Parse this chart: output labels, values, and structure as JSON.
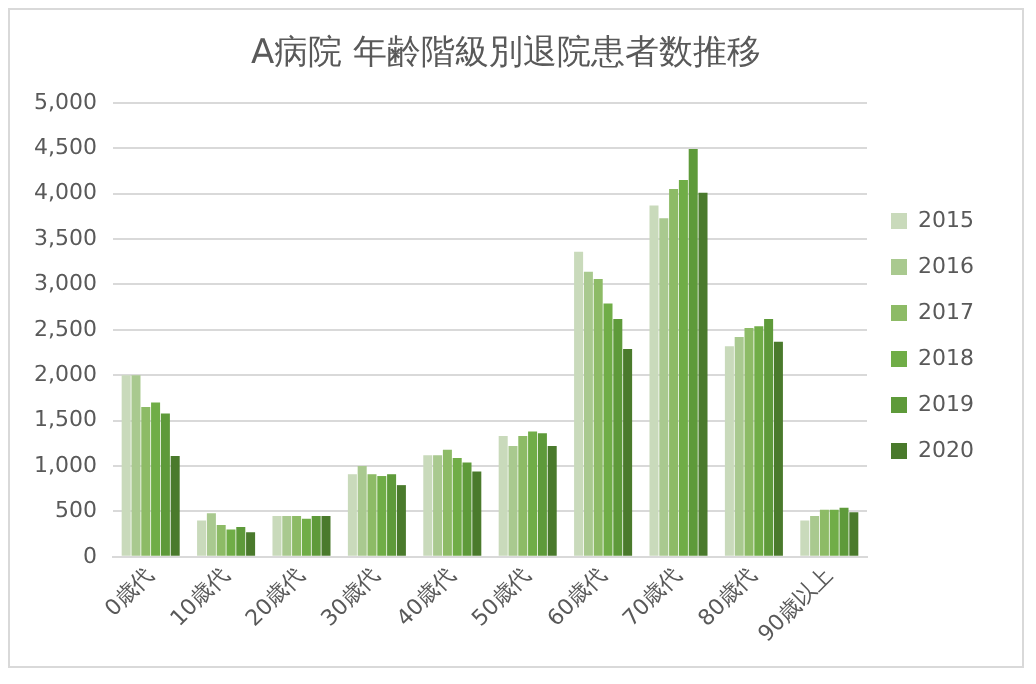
{
  "chart_data": {
    "type": "bar",
    "title": "A病院 年齢階級別退院患者数推移",
    "categories": [
      "0歳代",
      "10歳代",
      "20歳代",
      "30歳代",
      "40歳代",
      "50歳代",
      "60歳代",
      "70歳代",
      "80歳代",
      "90歳以上"
    ],
    "series": [
      {
        "name": "2015",
        "color": "#c9dabb",
        "values": [
          2000,
          400,
          450,
          910,
          1120,
          1330,
          3360,
          3870,
          2320,
          400
        ]
      },
      {
        "name": "2016",
        "color": "#a9c98f",
        "values": [
          2000,
          480,
          450,
          1000,
          1120,
          1220,
          3140,
          3730,
          2420,
          450
        ]
      },
      {
        "name": "2017",
        "color": "#8dbb66",
        "values": [
          1650,
          350,
          450,
          910,
          1180,
          1330,
          3060,
          4050,
          2520,
          520
        ]
      },
      {
        "name": "2018",
        "color": "#70ad47",
        "values": [
          1700,
          300,
          420,
          890,
          1090,
          1380,
          2790,
          4150,
          2540,
          520
        ]
      },
      {
        "name": "2019",
        "color": "#5e9a3a",
        "values": [
          1580,
          330,
          450,
          910,
          1040,
          1360,
          2620,
          4490,
          2620,
          540
        ]
      },
      {
        "name": "2020",
        "color": "#4a7a2c",
        "values": [
          1110,
          270,
          450,
          790,
          940,
          1220,
          2290,
          4010,
          2370,
          490
        ]
      }
    ],
    "ylim": [
      0,
      5000
    ],
    "yticks": [
      0,
      500,
      {
        "value": 1000,
        "label": "1,000"
      },
      {
        "value": 1500,
        "label": "1,500"
      },
      {
        "value": 2000,
        "label": "2,000"
      },
      {
        "value": 2500,
        "label": "2,500"
      },
      {
        "value": 3000,
        "label": "3,000"
      },
      {
        "value": 3500,
        "label": "3,500"
      },
      {
        "value": 4000,
        "label": "4,000"
      },
      {
        "value": 4500,
        "label": "4,500"
      },
      {
        "value": 5000,
        "label": "5,000"
      }
    ],
    "grid": "y",
    "legend": "right"
  }
}
